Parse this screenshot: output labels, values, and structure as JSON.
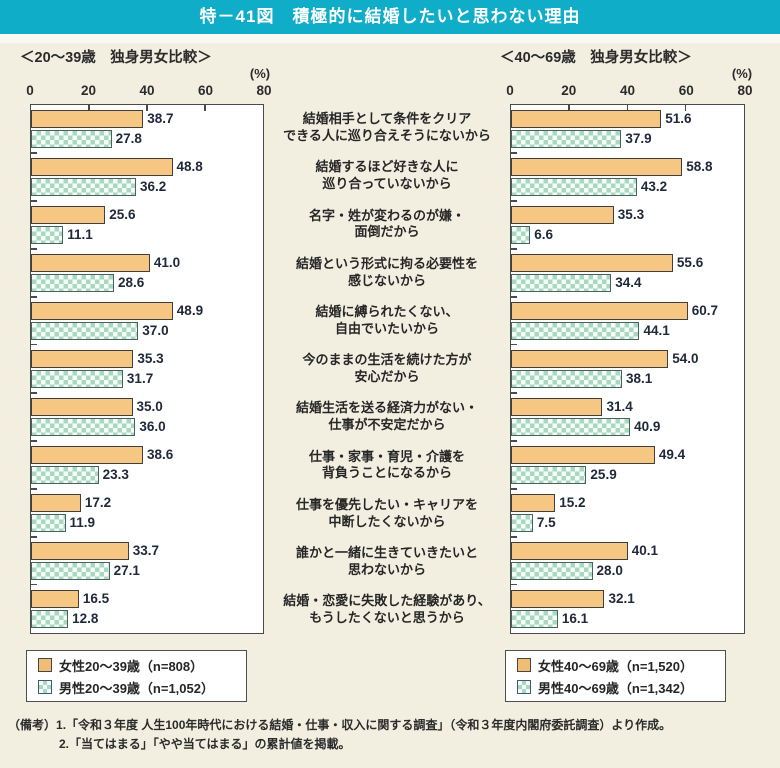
{
  "header": {
    "title": "特－41図　積極的に結婚したいと思わない理由"
  },
  "colors": {
    "header_bg": "#0FADC8",
    "page_bg": "#F2EFE1",
    "female_bar": "#F6C783",
    "male_check": "#A9D8C0",
    "bar_border": "#3F3F3F",
    "plot_bg": "#FFFFFF"
  },
  "category_lines": [
    [
      "結婚相手として条件をクリア",
      "できる人に巡り合えそうにないから"
    ],
    [
      "結婚するほど好きな人に",
      "巡り合っていないから"
    ],
    [
      "名字・姓が変わるのが嫌・",
      "面倒だから"
    ],
    [
      "結婚という形式に拘る必要性を",
      "感じないから"
    ],
    [
      "結婚に縛られたくない、",
      "自由でいたいから"
    ],
    [
      "今のままの生活を続けた方が",
      "安心だから"
    ],
    [
      "結婚生活を送る経済力がない・",
      "仕事が不安定だから"
    ],
    [
      "仕事・家事・育児・介護を",
      "背負うことになるから"
    ],
    [
      "仕事を優先したい・キャリアを",
      "中断したくないから"
    ],
    [
      "誰かと一緒に生きていきたいと",
      "思わないから"
    ],
    [
      "結婚・恋愛に失敗した経験があり、",
      "もうしたくないと思うから"
    ]
  ],
  "chart_data": [
    {
      "type": "bar",
      "orientation": "horizontal",
      "title": "＜20～39歳　独身男女比較＞",
      "unit_label": "(%)",
      "xlim": [
        0,
        80
      ],
      "ticks": [
        0,
        20,
        40,
        60,
        80
      ],
      "grid": false,
      "legend_position": "bottom",
      "categories": [
        "結婚相手として条件をクリアできる人に巡り合えそうにないから",
        "結婚するほど好きな人に巡り合っていないから",
        "名字・姓が変わるのが嫌・面倒だから",
        "結婚という形式に拘る必要性を感じないから",
        "結婚に縛られたくない、自由でいたいから",
        "今のままの生活を続けた方が安心だから",
        "結婚生活を送る経済力がない・仕事が不安定だから",
        "仕事・家事・育児・介護を背負うことになるから",
        "仕事を優先したい・キャリアを中断したくないから",
        "誰かと一緒に生きていきたいと思わないから",
        "結婚・恋愛に失敗した経験があり、もうしたくないと思うから"
      ],
      "series": [
        {
          "name": "女性20～39歳（n=808）",
          "style": "female",
          "values": [
            38.7,
            48.8,
            25.6,
            41.0,
            48.9,
            35.3,
            35.0,
            38.6,
            17.2,
            33.7,
            16.5
          ]
        },
        {
          "name": "男性20～39歳（n=1,052）",
          "style": "male",
          "values": [
            27.8,
            36.2,
            11.1,
            28.6,
            37.0,
            31.7,
            36.0,
            23.3,
            11.9,
            27.1,
            12.8
          ]
        }
      ]
    },
    {
      "type": "bar",
      "orientation": "horizontal",
      "title": "＜40～69歳　独身男女比較＞",
      "unit_label": "(%)",
      "xlim": [
        0,
        80
      ],
      "ticks": [
        0,
        20,
        40,
        60,
        80
      ],
      "grid": false,
      "legend_position": "bottom",
      "categories": [
        "結婚相手として条件をクリアできる人に巡り合えそうにないから",
        "結婚するほど好きな人に巡り合っていないから",
        "名字・姓が変わるのが嫌・面倒だから",
        "結婚という形式に拘る必要性を感じないから",
        "結婚に縛られたくない、自由でいたいから",
        "今のままの生活を続けた方が安心だから",
        "結婚生活を送る経済力がない・仕事が不安定だから",
        "仕事・家事・育児・介護を背負うことになるから",
        "仕事を優先したい・キャリアを中断したくないから",
        "誰かと一緒に生きていきたいと思わないから",
        "結婚・恋愛に失敗した経験があり、もうしたくないと思うから"
      ],
      "series": [
        {
          "name": "女性40～69歳（n=1,520）",
          "style": "female",
          "values": [
            51.6,
            58.8,
            35.3,
            55.6,
            60.7,
            54.0,
            31.4,
            49.4,
            15.2,
            40.1,
            32.1
          ]
        },
        {
          "name": "男性40～69歳（n=1,342）",
          "style": "male",
          "values": [
            37.9,
            43.2,
            6.6,
            34.4,
            44.1,
            38.1,
            40.9,
            25.9,
            7.5,
            28.0,
            16.1
          ]
        }
      ]
    }
  ],
  "notes": {
    "prefix": "（備考）",
    "line1": "1.「令和３年度 人生100年時代における結婚・仕事・収入に関する調査」（令和３年度内閣府委託調査）より作成。",
    "line2": "2.「当てはまる」「やや当てはまる」の累計値を掲載。"
  }
}
